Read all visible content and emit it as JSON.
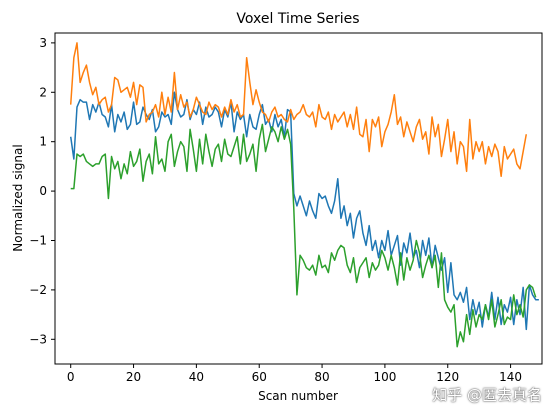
{
  "chart_data": {
    "type": "line",
    "title": "Voxel Time Series",
    "xlabel": "Scan number",
    "ylabel": "Normalized signal",
    "xlim": [
      -5,
      150
    ],
    "ylim": [
      -3.5,
      3.2
    ],
    "xticks": [
      0,
      20,
      40,
      60,
      80,
      100,
      120,
      140
    ],
    "yticks": [
      -3,
      -2,
      -1,
      0,
      1,
      2,
      3
    ],
    "grid": false,
    "legend": "none",
    "series": [
      {
        "color": "#1f77b4",
        "values": [
          1.1,
          0.65,
          1.7,
          1.85,
          1.8,
          1.8,
          1.45,
          1.75,
          1.6,
          1.8,
          1.55,
          1.5,
          1.3,
          1.75,
          1.2,
          1.55,
          1.4,
          1.6,
          1.25,
          1.35,
          1.8,
          1.35,
          1.4,
          1.7,
          1.55,
          1.45,
          1.65,
          1.2,
          1.3,
          1.6,
          1.5,
          1.55,
          1.35,
          2.0,
          1.65,
          1.5,
          1.55,
          1.85,
          1.45,
          1.65,
          1.55,
          1.8,
          1.35,
          1.7,
          1.5,
          1.55,
          1.7,
          1.6,
          1.3,
          1.65,
          1.5,
          1.8,
          1.2,
          1.6,
          1.45,
          1.55,
          1.1,
          1.55,
          1.3,
          1.25,
          1.55,
          1.75,
          1.35,
          1.45,
          1.2,
          1.55,
          1.3,
          1.45,
          1.1,
          1.65,
          1.6,
          -0.05,
          -0.3,
          -0.1,
          -0.3,
          -0.5,
          -0.2,
          -0.4,
          -0.55,
          -0.05,
          -0.15,
          -0.1,
          -0.3,
          -0.45,
          -0.2,
          0.25,
          -0.55,
          -0.3,
          -0.7,
          -0.45,
          -0.95,
          -0.55,
          -0.4,
          -0.85,
          -1.1,
          -0.7,
          -1.2,
          -1.0,
          -1.35,
          -1.0,
          -1.2,
          -0.8,
          -1.3,
          -1.1,
          -0.9,
          -1.5,
          -1.05,
          -1.25,
          -0.85,
          -1.35,
          -1.2,
          -1.55,
          -1.0,
          -1.3,
          -0.95,
          -1.55,
          -1.1,
          -1.35,
          -1.6,
          -1.35,
          -2.05,
          -1.45,
          -2.1,
          -2.2,
          -2.05,
          -2.25,
          -1.95,
          -2.6,
          -2.2,
          -2.5,
          -2.25,
          -2.75,
          -2.3,
          -2.55,
          -2.05,
          -2.6,
          -2.15,
          -2.7,
          -2.3,
          -2.45,
          -2.15,
          -2.7,
          -2.2,
          -2.5,
          -1.95,
          -2.8,
          -1.9,
          -2.1,
          -2.2,
          -2.2
        ]
      },
      {
        "color": "#ff7f0e",
        "values": [
          1.75,
          2.7,
          3.0,
          2.2,
          2.4,
          2.55,
          2.2,
          1.95,
          2.1,
          1.75,
          1.85,
          1.9,
          1.6,
          1.75,
          2.3,
          2.25,
          2.0,
          2.05,
          2.1,
          1.9,
          2.2,
          1.75,
          2.15,
          2.1,
          1.4,
          1.55,
          1.6,
          1.75,
          1.5,
          2.0,
          1.55,
          1.9,
          1.6,
          2.4,
          1.65,
          1.95,
          1.7,
          1.8,
          1.5,
          1.65,
          1.9,
          1.75,
          1.6,
          1.55,
          1.8,
          1.65,
          1.75,
          1.7,
          1.5,
          1.7,
          1.55,
          1.85,
          1.6,
          1.75,
          1.5,
          1.55,
          2.7,
          2.2,
          1.75,
          2.05,
          1.8,
          1.6,
          1.55,
          1.4,
          1.6,
          1.7,
          1.5,
          1.55,
          1.45,
          1.4,
          1.65,
          1.45,
          1.55,
          1.6,
          1.75,
          1.55,
          1.5,
          1.6,
          1.3,
          1.75,
          1.5,
          1.45,
          1.6,
          1.25,
          1.55,
          1.4,
          1.5,
          1.6,
          1.3,
          1.55,
          1.25,
          1.7,
          1.15,
          1.1,
          1.45,
          0.8,
          1.45,
          1.3,
          1.5,
          0.9,
          1.2,
          1.35,
          1.6,
          1.95,
          1.35,
          1.5,
          1.1,
          1.4,
          1.2,
          1.0,
          1.3,
          1.45,
          1.05,
          1.2,
          0.75,
          1.5,
          1.1,
          1.35,
          0.7,
          1.05,
          1.45,
          0.8,
          1.2,
          0.55,
          1.0,
          0.9,
          0.4,
          1.45,
          0.65,
          1.0,
          0.8,
          1.0,
          0.55,
          0.9,
          0.7,
          0.95,
          0.8,
          0.3,
          0.9,
          0.65,
          0.75,
          0.85,
          0.55,
          0.45,
          0.8,
          1.15
        ]
      },
      {
        "color": "#2ca02c",
        "values": [
          0.05,
          0.05,
          0.75,
          0.7,
          0.75,
          0.6,
          0.55,
          0.5,
          0.55,
          0.55,
          0.7,
          0.75,
          -0.15,
          0.7,
          0.45,
          0.6,
          0.25,
          0.55,
          0.35,
          0.8,
          0.5,
          0.6,
          0.85,
          0.2,
          0.6,
          0.75,
          0.35,
          1.1,
          0.55,
          0.65,
          0.4,
          1.0,
          1.15,
          0.5,
          0.8,
          1.0,
          0.9,
          0.4,
          1.25,
          0.85,
          0.4,
          1.05,
          0.55,
          1.15,
          0.8,
          0.5,
          0.85,
          0.95,
          0.6,
          1.05,
          0.75,
          0.7,
          0.9,
          1.1,
          0.55,
          1.15,
          0.6,
          0.75,
          0.95,
          0.4,
          1.05,
          1.35,
          0.8,
          1.05,
          1.3,
          1.2,
          1.0,
          1.3,
          1.05,
          1.25,
          0.95,
          -0.35,
          -2.1,
          -1.3,
          -1.4,
          -1.55,
          -1.6,
          -1.5,
          -1.7,
          -1.3,
          -1.55,
          -1.5,
          -1.65,
          -1.25,
          -1.4,
          -1.2,
          -1.1,
          -1.15,
          -1.5,
          -1.65,
          -1.35,
          -1.85,
          -1.55,
          -1.45,
          -1.35,
          -1.75,
          -1.45,
          -1.6,
          -1.5,
          -1.2,
          -1.35,
          -1.6,
          -1.3,
          -1.55,
          -1.9,
          -1.25,
          -1.8,
          -1.35,
          -1.6,
          -1.4,
          -1.0,
          -1.25,
          -1.75,
          -1.5,
          -1.3,
          -1.55,
          -1.3,
          -1.95,
          -1.25,
          -2.2,
          -2.35,
          -2.45,
          -2.3,
          -3.15,
          -2.85,
          -3.05,
          -2.5,
          -2.9,
          -2.4,
          -2.75,
          -2.5,
          -2.6,
          -2.3,
          -2.6,
          -2.2,
          -2.75,
          -2.5,
          -2.2,
          -2.7,
          -2.55,
          -2.6,
          -2.1,
          -2.5,
          -2.3,
          -2.55,
          -2.0,
          -1.9,
          -1.95,
          -2.15
        ]
      }
    ]
  },
  "watermark": "知乎 @匿去真名"
}
